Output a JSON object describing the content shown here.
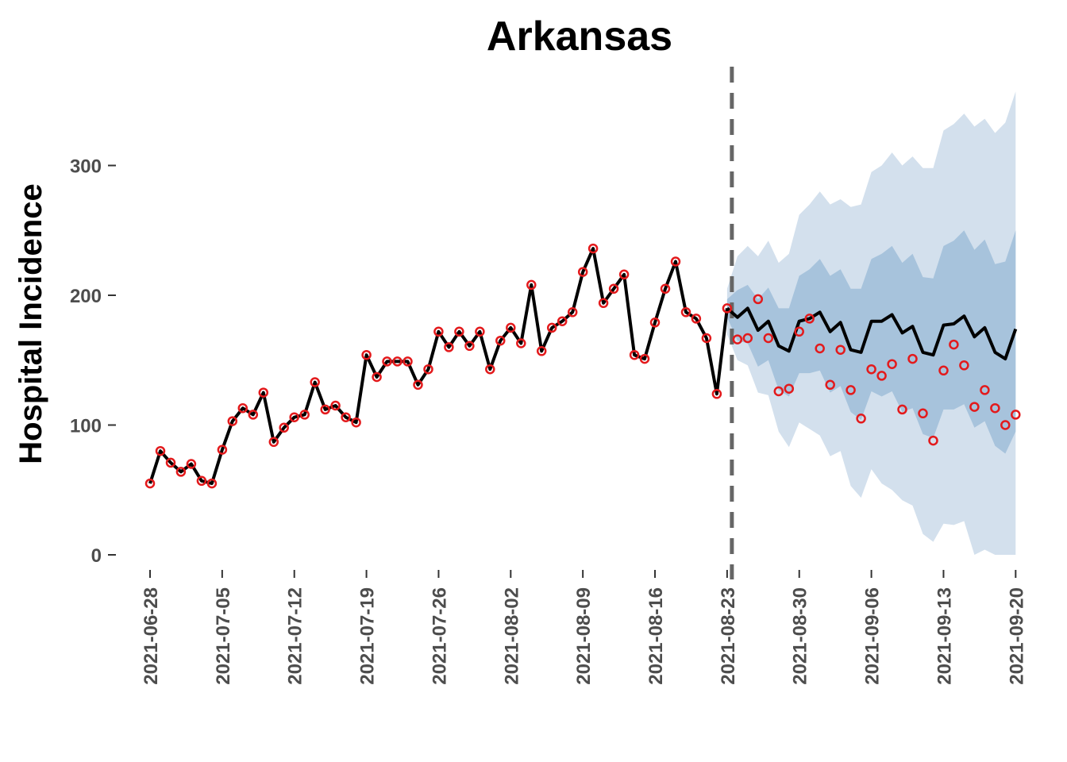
{
  "chart_data": {
    "type": "line",
    "title": "Arkansas",
    "ylabel": "Hospital Incidence",
    "xlabel": "",
    "ylim": [
      -18,
      360
    ],
    "y_ticks": [
      "0",
      "100",
      "200",
      "300"
    ],
    "x_ticks": [
      "2021-06-28",
      "2021-07-05",
      "2021-07-12",
      "2021-07-19",
      "2021-07-26",
      "2021-08-02",
      "2021-08-09",
      "2021-08-16",
      "2021-08-23",
      "2021-08-30",
      "2021-09-06",
      "2021-09-13",
      "2021-09-20"
    ],
    "x_start": "2021-06-28",
    "forecast_start": "2021-08-24",
    "grid": false,
    "legend": "none",
    "colors": {
      "observed": "#e31a1c",
      "model_line": "#000000",
      "band_outer": "#d3e0ed",
      "band_inner": "#a7c3dc",
      "forecast_divider": "#666666",
      "tick_text": "#4d4d4d"
    },
    "series": [
      {
        "kind": "observed_points",
        "dates": [
          "2021-06-28",
          "2021-06-29",
          "2021-06-30",
          "2021-07-01",
          "2021-07-02",
          "2021-07-03",
          "2021-07-04",
          "2021-07-05",
          "2021-07-06",
          "2021-07-07",
          "2021-07-08",
          "2021-07-09",
          "2021-07-10",
          "2021-07-11",
          "2021-07-12",
          "2021-07-13",
          "2021-07-14",
          "2021-07-15",
          "2021-07-16",
          "2021-07-17",
          "2021-07-18",
          "2021-07-19",
          "2021-07-20",
          "2021-07-21",
          "2021-07-22",
          "2021-07-23",
          "2021-07-24",
          "2021-07-25",
          "2021-07-26",
          "2021-07-27",
          "2021-07-28",
          "2021-07-29",
          "2021-07-30",
          "2021-07-31",
          "2021-08-01",
          "2021-08-02",
          "2021-08-03",
          "2021-08-04",
          "2021-08-05",
          "2021-08-06",
          "2021-08-07",
          "2021-08-08",
          "2021-08-09",
          "2021-08-10",
          "2021-08-11",
          "2021-08-12",
          "2021-08-13",
          "2021-08-14",
          "2021-08-15",
          "2021-08-16",
          "2021-08-17",
          "2021-08-18",
          "2021-08-19",
          "2021-08-20",
          "2021-08-21",
          "2021-08-22",
          "2021-08-23",
          "2021-08-24",
          "2021-08-25",
          "2021-08-26",
          "2021-08-27",
          "2021-08-28",
          "2021-08-29",
          "2021-08-30",
          "2021-08-31",
          "2021-09-01",
          "2021-09-02",
          "2021-09-03",
          "2021-09-04",
          "2021-09-05",
          "2021-09-06",
          "2021-09-07",
          "2021-09-08",
          "2021-09-09",
          "2021-09-10",
          "2021-09-11",
          "2021-09-12",
          "2021-09-13",
          "2021-09-14",
          "2021-09-15",
          "2021-09-16",
          "2021-09-17",
          "2021-09-18",
          "2021-09-19",
          "2021-09-20"
        ],
        "values": [
          55,
          80,
          71,
          64,
          70,
          57,
          55,
          81,
          103,
          113,
          108,
          125,
          87,
          98,
          106,
          108,
          133,
          112,
          115,
          106,
          102,
          154,
          137,
          149,
          149,
          149,
          131,
          143,
          172,
          160,
          172,
          161,
          172,
          143,
          165,
          175,
          163,
          208,
          157,
          175,
          180,
          187,
          218,
          236,
          194,
          205,
          216,
          154,
          151,
          179,
          205,
          226,
          187,
          182,
          167,
          124,
          190,
          166,
          167,
          197,
          167,
          126,
          128,
          172,
          182,
          159,
          131,
          158,
          127,
          105,
          143,
          138,
          147,
          112,
          151,
          109,
          88,
          142,
          162,
          146,
          114,
          127,
          113,
          100,
          108
        ]
      },
      {
        "kind": "model_fit",
        "dates": [
          "2021-06-28",
          "2021-06-29",
          "2021-06-30",
          "2021-07-01",
          "2021-07-02",
          "2021-07-03",
          "2021-07-04",
          "2021-07-05",
          "2021-07-06",
          "2021-07-07",
          "2021-07-08",
          "2021-07-09",
          "2021-07-10",
          "2021-07-11",
          "2021-07-12",
          "2021-07-13",
          "2021-07-14",
          "2021-07-15",
          "2021-07-16",
          "2021-07-17",
          "2021-07-18",
          "2021-07-19",
          "2021-07-20",
          "2021-07-21",
          "2021-07-22",
          "2021-07-23",
          "2021-07-24",
          "2021-07-25",
          "2021-07-26",
          "2021-07-27",
          "2021-07-28",
          "2021-07-29",
          "2021-07-30",
          "2021-07-31",
          "2021-08-01",
          "2021-08-02",
          "2021-08-03",
          "2021-08-04",
          "2021-08-05",
          "2021-08-06",
          "2021-08-07",
          "2021-08-08",
          "2021-08-09",
          "2021-08-10",
          "2021-08-11",
          "2021-08-12",
          "2021-08-13",
          "2021-08-14",
          "2021-08-15",
          "2021-08-16",
          "2021-08-17",
          "2021-08-18",
          "2021-08-19",
          "2021-08-20",
          "2021-08-21",
          "2021-08-22",
          "2021-08-23"
        ],
        "values": [
          55,
          80,
          71,
          64,
          70,
          57,
          55,
          81,
          103,
          113,
          108,
          125,
          87,
          98,
          106,
          108,
          133,
          112,
          115,
          106,
          102,
          154,
          137,
          149,
          149,
          149,
          131,
          143,
          172,
          160,
          172,
          161,
          172,
          143,
          165,
          175,
          163,
          208,
          157,
          175,
          180,
          187,
          218,
          236,
          194,
          205,
          216,
          154,
          151,
          179,
          205,
          226,
          187,
          182,
          167,
          124,
          190
        ]
      },
      {
        "kind": "forecast_median",
        "dates": [
          "2021-08-23",
          "2021-08-24",
          "2021-08-25",
          "2021-08-26",
          "2021-08-27",
          "2021-08-28",
          "2021-08-29",
          "2021-08-30",
          "2021-08-31",
          "2021-09-01",
          "2021-09-02",
          "2021-09-03",
          "2021-09-04",
          "2021-09-05",
          "2021-09-06",
          "2021-09-07",
          "2021-09-08",
          "2021-09-09",
          "2021-09-10",
          "2021-09-11",
          "2021-09-12",
          "2021-09-13",
          "2021-09-14",
          "2021-09-15",
          "2021-09-16",
          "2021-09-17",
          "2021-09-18",
          "2021-09-19",
          "2021-09-20"
        ],
        "values": [
          190,
          183,
          190,
          173,
          180,
          161,
          157,
          180,
          182,
          187,
          172,
          179,
          158,
          156,
          180,
          180,
          185,
          171,
          176,
          156,
          154,
          177,
          178,
          184,
          168,
          175,
          156,
          151,
          174
        ]
      },
      {
        "kind": "interval_outer",
        "dates": [
          "2021-08-23",
          "2021-08-24",
          "2021-08-25",
          "2021-08-26",
          "2021-08-27",
          "2021-08-28",
          "2021-08-29",
          "2021-08-30",
          "2021-08-31",
          "2021-09-01",
          "2021-09-02",
          "2021-09-03",
          "2021-09-04",
          "2021-09-05",
          "2021-09-06",
          "2021-09-07",
          "2021-09-08",
          "2021-09-09",
          "2021-09-10",
          "2021-09-11",
          "2021-09-12",
          "2021-09-13",
          "2021-09-14",
          "2021-09-15",
          "2021-09-16",
          "2021-09-17",
          "2021-09-18",
          "2021-09-19",
          "2021-09-20"
        ],
        "lower": [
          170,
          150,
          146,
          125,
          123,
          95,
          83,
          102,
          97,
          92,
          76,
          80,
          53,
          44,
          66,
          55,
          50,
          42,
          38,
          16,
          10,
          24,
          23,
          26,
          0,
          4,
          0,
          0,
          0
        ],
        "upper": [
          205,
          230,
          238,
          230,
          242,
          225,
          232,
          262,
          270,
          280,
          270,
          274,
          268,
          270,
          295,
          300,
          310,
          300,
          307,
          298,
          298,
          327,
          332,
          340,
          330,
          336,
          325,
          333,
          357
        ]
      },
      {
        "kind": "interval_inner",
        "dates": [
          "2021-08-23",
          "2021-08-24",
          "2021-08-25",
          "2021-08-26",
          "2021-08-27",
          "2021-08-28",
          "2021-08-29",
          "2021-08-30",
          "2021-08-31",
          "2021-09-01",
          "2021-09-02",
          "2021-09-03",
          "2021-09-04",
          "2021-09-05",
          "2021-09-06",
          "2021-09-07",
          "2021-09-08",
          "2021-09-09",
          "2021-09-10",
          "2021-09-11",
          "2021-09-12",
          "2021-09-13",
          "2021-09-14",
          "2021-09-15",
          "2021-09-16",
          "2021-09-17",
          "2021-09-18",
          "2021-09-19",
          "2021-09-20"
        ],
        "lower": [
          183,
          165,
          163,
          145,
          150,
          127,
          122,
          140,
          140,
          142,
          125,
          130,
          110,
          104,
          126,
          122,
          126,
          110,
          113,
          93,
          90,
          112,
          112,
          116,
          98,
          103,
          84,
          78,
          95
        ],
        "upper": [
          197,
          204,
          208,
          197,
          206,
          190,
          190,
          215,
          220,
          228,
          215,
          220,
          205,
          205,
          228,
          232,
          238,
          225,
          232,
          214,
          213,
          238,
          242,
          250,
          235,
          243,
          224,
          226,
          250
        ]
      }
    ]
  }
}
